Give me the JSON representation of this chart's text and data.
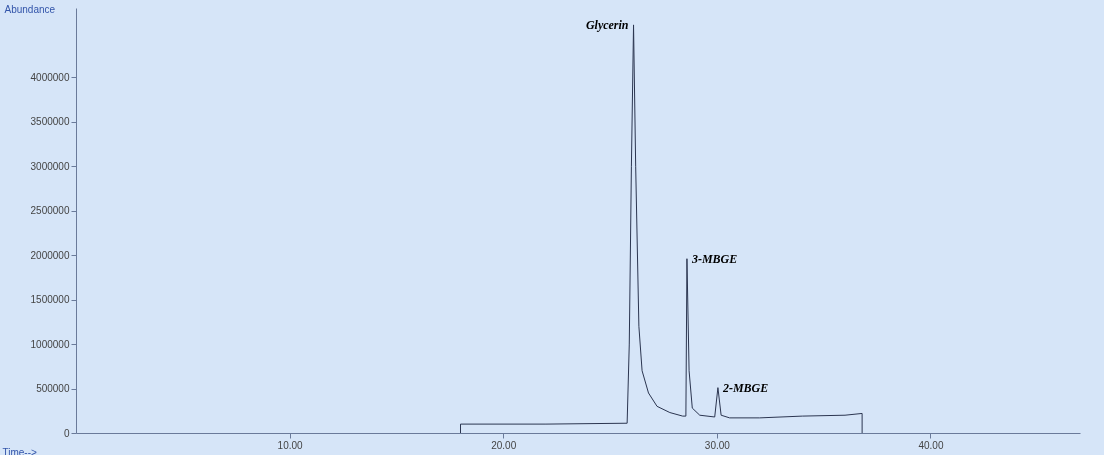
{
  "chart_data": {
    "type": "line",
    "xlabel": "Time-->",
    "ylabel": "Abundance",
    "x": [
      18.0,
      18.0,
      22.0,
      25.8,
      25.9,
      26.0,
      26.1,
      26.2,
      26.35,
      26.5,
      26.8,
      27.2,
      27.8,
      28.4,
      28.55,
      28.6,
      28.7,
      28.85,
      29.2,
      29.9,
      30.05,
      30.2,
      30.6,
      32.0,
      34.0,
      36.0,
      36.8,
      36.8
    ],
    "series": [
      {
        "color": "#2b3550",
        "values": [
          0,
          100000,
          100000,
          110000,
          1000000,
          3000000,
          4590000,
          3000000,
          1200000,
          700000,
          450000,
          300000,
          230000,
          190000,
          190000,
          1960000,
          700000,
          280000,
          200000,
          180000,
          510000,
          200000,
          170000,
          170000,
          190000,
          200000,
          220000,
          0
        ]
      }
    ],
    "xlim": [
      0,
      47
    ],
    "xticks": [
      {
        "value": 10,
        "label": "10.00"
      },
      {
        "value": 20,
        "label": "20.00"
      },
      {
        "value": 30,
        "label": "30.00"
      },
      {
        "value": 40,
        "label": "40.00"
      }
    ],
    "ylim": [
      0,
      4780000
    ],
    "yticks": [
      0,
      500000,
      1000000,
      1500000,
      2000000,
      2500000,
      3000000,
      3500000,
      4000000
    ],
    "grid": false,
    "marker": "none",
    "line_style": "solid",
    "annotations": [
      {
        "text": "Glycerin",
        "x": 26.1,
        "y": 4590000
      },
      {
        "text": "3-MBGE",
        "x": 28.6,
        "y": 1960000
      },
      {
        "text": "2-MBGE",
        "x": 30.05,
        "y": 510000
      }
    ]
  }
}
